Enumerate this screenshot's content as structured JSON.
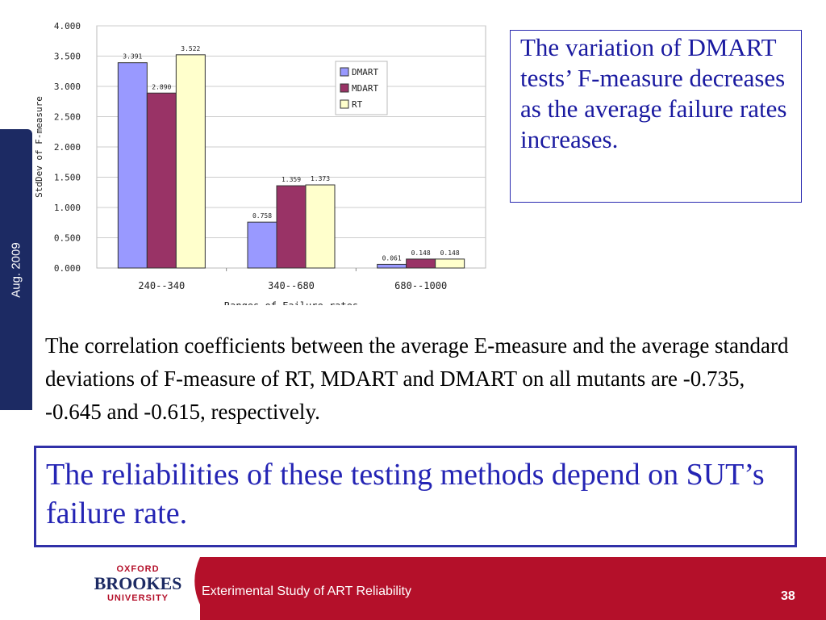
{
  "side_label": "Aug. 2009",
  "callout": "The variation of DMART tests’ F-measure decreases as the average failure rates increases.",
  "body_text": "The correlation coefficients between the average E-measure and the average standard deviations of F-measure of RT, MDART and DMART on all mutants are -0.735, -0.645 and -0.615, respectively.",
  "conclusion": "The reliabilities of these testing methods depend on SUT’s failure rate.",
  "footer": {
    "logo": {
      "line1": "OXFORD",
      "line2": "BROOKES",
      "line3": "UNIVERSITY"
    },
    "title": "Exterimental Study of ART Reliability",
    "page_number": "38"
  },
  "colors": {
    "footer_red": "#b4102a",
    "navy": "#1c2a63",
    "callout_text": "#1a1aa0",
    "conclusion_text": "#2424b4"
  },
  "chart_data": {
    "type": "bar",
    "categories": [
      "240--340",
      "340--680",
      "680--1000"
    ],
    "series": [
      {
        "name": "DMART",
        "values": [
          3.391,
          0.758,
          0.061
        ],
        "labels": [
          "3.391",
          "0.758",
          "0.061"
        ],
        "color": "#9999ff"
      },
      {
        "name": "MDART",
        "values": [
          2.89,
          1.359,
          0.148
        ],
        "labels": [
          "2.890",
          "1.359",
          "0.148"
        ],
        "color": "#993366"
      },
      {
        "name": "RT",
        "values": [
          3.522,
          1.373,
          0.148
        ],
        "labels": [
          "3.522",
          "1.373",
          "0.148"
        ],
        "color": "#ffffcc"
      }
    ],
    "xlabel": "Ranges of Failure rates",
    "ylabel": "StdDev of F-measure",
    "ylim": [
      0,
      4
    ],
    "yticks": [
      "0.000",
      "0.500",
      "1.000",
      "1.500",
      "2.000",
      "2.500",
      "3.000",
      "3.500",
      "4.000"
    ],
    "grid": true,
    "legend_position": "right"
  }
}
